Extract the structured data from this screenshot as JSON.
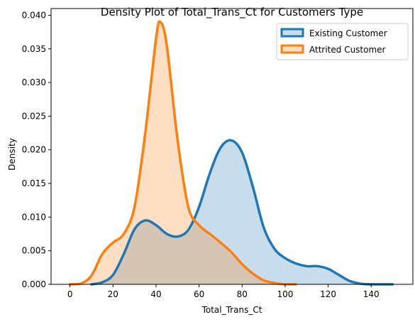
{
  "chart_data": {
    "type": "area",
    "title": "Density Plot of Total_Trans_Ct for Customers Type",
    "xlabel": "Total_Trans_Ct",
    "ylabel": "Density",
    "xlim": [
      -8.8,
      159.4
    ],
    "ylim": [
      0,
      0.041
    ],
    "xticks": [
      0,
      20,
      40,
      60,
      80,
      100,
      120,
      140
    ],
    "yticks": [
      0.0,
      0.005,
      0.01,
      0.015,
      0.02,
      0.025,
      0.03,
      0.035,
      0.04
    ],
    "xtick_labels": [
      "0",
      "20",
      "40",
      "60",
      "80",
      "100",
      "120",
      "140"
    ],
    "ytick_labels": [
      "0.000",
      "0.005",
      "0.010",
      "0.015",
      "0.020",
      "0.025",
      "0.030",
      "0.035",
      "0.040"
    ],
    "grid": false,
    "legend_position": "top-right",
    "series": [
      {
        "name": "Existing Customer",
        "color": "#1f77b4",
        "x": [
          10,
          15,
          20,
          25,
          30,
          35,
          40,
          45,
          50,
          55,
          60,
          65,
          70,
          75,
          80,
          85,
          90,
          95,
          100,
          105,
          110,
          115,
          120,
          125,
          130,
          135,
          140,
          145,
          150
        ],
        "y": [
          0.0,
          0.0003,
          0.0014,
          0.0045,
          0.0082,
          0.0095,
          0.0088,
          0.0075,
          0.0071,
          0.0081,
          0.0115,
          0.0165,
          0.0203,
          0.0214,
          0.0196,
          0.0145,
          0.0085,
          0.0053,
          0.0039,
          0.0031,
          0.0027,
          0.0027,
          0.0023,
          0.0014,
          0.0005,
          0.0001,
          0.0,
          0.0,
          0.0
        ]
      },
      {
        "name": "Attrited Customer",
        "color": "#ff7f0e",
        "x": [
          0,
          5,
          10,
          15,
          20,
          25,
          30,
          35,
          40,
          42,
          45,
          50,
          55,
          60,
          65,
          70,
          75,
          80,
          85,
          90,
          95,
          100,
          105
        ],
        "y": [
          0.0,
          0.0001,
          0.0013,
          0.0045,
          0.0062,
          0.0075,
          0.0115,
          0.0225,
          0.0365,
          0.039,
          0.0355,
          0.0215,
          0.0115,
          0.0088,
          0.0075,
          0.0062,
          0.0048,
          0.003,
          0.0016,
          0.0006,
          0.0002,
          0.0,
          0.0
        ]
      }
    ]
  }
}
